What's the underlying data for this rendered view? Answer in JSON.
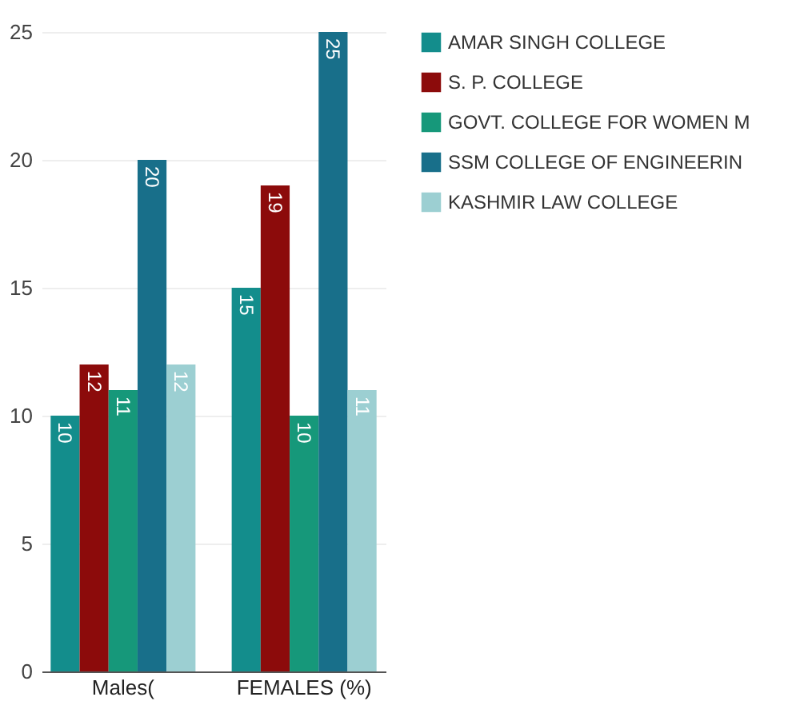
{
  "chart_data": {
    "type": "bar",
    "categories": [
      "Males(",
      "FEMALES (%)"
    ],
    "series": [
      {
        "name": "AMAR SINGH COLLEGE",
        "color": "#138d8c",
        "values": [
          10,
          15
        ]
      },
      {
        "name": "S. P. COLLEGE",
        "color": "#8c0b0b",
        "values": [
          12,
          19
        ]
      },
      {
        "name": "GOVT. COLLEGE FOR WOMEN M",
        "color": "#16987a",
        "values": [
          11,
          10
        ]
      },
      {
        "name": "SSM COLLEGE OF ENGINEERIN",
        "color": "#186f8a",
        "values": [
          20,
          25
        ]
      },
      {
        "name": "KASHMIR LAW COLLEGE",
        "color": "#9ccfd2",
        "values": [
          12,
          11
        ]
      }
    ],
    "ylim": [
      0,
      25
    ],
    "yticks": [
      0,
      5,
      10,
      15,
      20,
      25
    ],
    "grid": "y",
    "legend": "top right",
    "data_labels": true
  }
}
